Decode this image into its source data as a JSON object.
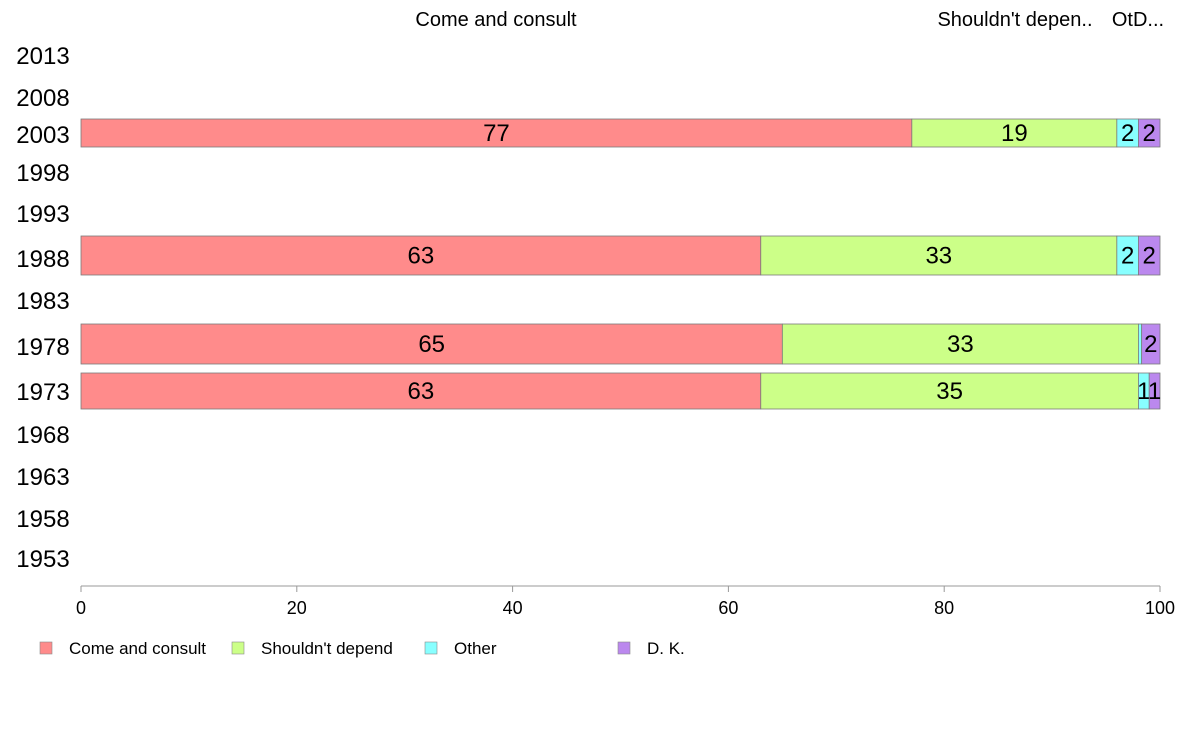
{
  "chart_data": {
    "type": "bar",
    "orientation": "horizontal",
    "stacked": true,
    "years": [
      "2013",
      "2008",
      "2003",
      "1998",
      "1993",
      "1988",
      "1983",
      "1978",
      "1973",
      "1968",
      "1963",
      "1958",
      "1953"
    ],
    "top_labels": [
      "Come and consult",
      "Shouldn't depen..",
      "OtD..."
    ],
    "series": [
      {
        "name": "Come and consult",
        "color": "#ff8b8b",
        "values": [
          null,
          null,
          77,
          null,
          null,
          63,
          null,
          65,
          63,
          null,
          null,
          null,
          null
        ],
        "labels": [
          "",
          "",
          "77",
          "",
          "",
          "63",
          "",
          "65",
          "63",
          "",
          "",
          "",
          ""
        ]
      },
      {
        "name": "Shouldn't depend",
        "color": "#ccff88",
        "values": [
          null,
          null,
          19,
          null,
          null,
          33,
          null,
          33,
          35,
          null,
          null,
          null,
          null
        ],
        "labels": [
          "",
          "",
          "19",
          "",
          "",
          "33",
          "",
          "33",
          "35",
          "",
          "",
          "",
          ""
        ]
      },
      {
        "name": "Other",
        "color": "#88ffff",
        "values": [
          null,
          null,
          2,
          null,
          null,
          2,
          null,
          0.3,
          1,
          null,
          null,
          null,
          null
        ],
        "labels": [
          "",
          "",
          "2",
          "",
          "",
          "2",
          "",
          "",
          "1",
          "",
          "",
          "",
          ""
        ]
      },
      {
        "name": "D. K.",
        "color": "#bb88ee",
        "values": [
          null,
          null,
          2,
          null,
          null,
          2,
          null,
          1.7,
          1,
          null,
          null,
          null,
          null
        ],
        "labels": [
          "",
          "",
          "2",
          "",
          "",
          "2",
          "",
          "2",
          "1",
          "",
          "",
          "",
          ""
        ]
      }
    ],
    "x_ticks": [
      "0",
      "20",
      "40",
      "60",
      "80",
      "100"
    ],
    "xlim": [
      0,
      100
    ],
    "xlabel": "",
    "ylabel": "",
    "title": "",
    "grid": false,
    "legend_position": "bottom"
  }
}
